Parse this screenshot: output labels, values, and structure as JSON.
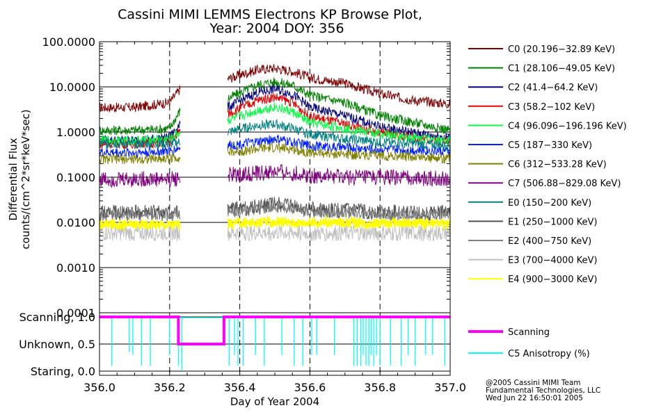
{
  "title_line1": "Cassini MIMI LEMMS Electrons KP Browse Plot,",
  "title_line2": "Year: 2004 DOY: 356",
  "credits": [
    "@2005 Cassini MIMI Team",
    "Fundamental Technologies, LLC",
    "Wed Jun 22 16:50:01 2005"
  ],
  "colors": {
    "C0": "#800000",
    "C1": "#008000",
    "C2": "#000080",
    "C3": "#e00000",
    "C4": "#00ff40",
    "C5": "#0020ff",
    "C6": "#808000",
    "C7": "#800080",
    "E0": "#008080",
    "E1": "#505050",
    "E2": "#808080",
    "E3": "#c0c0c0",
    "E4": "#ffff00",
    "scanning": "#ff00ff",
    "anisotropy": "#00ffff"
  },
  "chart_data": [
    {
      "type": "line",
      "title": "Cassini MIMI LEMMS Electrons KP Browse Plot, Year: 2004 DOY: 356",
      "xlabel": "Day of Year 2004",
      "ylabel": "Differential Flux counts/(cm^2*sr*keV*sec)",
      "yscale": "log",
      "xlim": [
        356.0,
        357.0
      ],
      "ylim": [
        0.0001,
        100.0
      ],
      "ytick_labels": [
        "100.0000",
        "10.0000",
        "1.0000",
        "0.1000",
        "0.0100",
        "0.0010",
        "0.0001"
      ],
      "grid": true,
      "data_gap": [
        356.23,
        356.365
      ],
      "dashed_day_markers": [
        356.2,
        356.4,
        356.6,
        356.8
      ],
      "series": [
        {
          "key": "C0",
          "name": "C0 (20.196−32.89 KeV)",
          "x": [
            356.0,
            356.1,
            356.2,
            356.23,
            356.365,
            356.45,
            356.5,
            356.55,
            356.6,
            356.7,
            356.8,
            356.9,
            357.0
          ],
          "values": [
            3.5,
            3.5,
            4.5,
            9.0,
            15,
            24,
            26,
            22,
            16,
            12,
            7,
            5,
            4.2
          ]
        },
        {
          "key": "C1",
          "name": "C1 (28.106−49.05 KeV)",
          "x": [
            356.0,
            356.1,
            356.2,
            356.23,
            356.365,
            356.45,
            356.5,
            356.55,
            356.6,
            356.7,
            356.8,
            356.9,
            357.0
          ],
          "values": [
            1.1,
            1.1,
            1.2,
            3.0,
            5.5,
            11,
            13,
            11,
            6.5,
            4.5,
            2.3,
            1.6,
            1.1
          ]
        },
        {
          "key": "C2",
          "name": "C2 (41.4−64.2 KeV)",
          "x": [
            356.0,
            356.1,
            356.2,
            356.23,
            356.365,
            356.45,
            356.5,
            356.55,
            356.6,
            356.7,
            356.8,
            356.9,
            357.0
          ],
          "values": [
            0.65,
            0.65,
            0.75,
            1.6,
            3.5,
            7.5,
            9,
            7,
            3.5,
            2.3,
            1.3,
            0.95,
            0.75
          ]
        },
        {
          "key": "C3",
          "name": "C3 (58.2−102 KeV)",
          "x": [
            356.0,
            356.1,
            356.2,
            356.23,
            356.365,
            356.45,
            356.5,
            356.55,
            356.6,
            356.7,
            356.8,
            356.9,
            357.0
          ],
          "values": [
            0.55,
            0.55,
            0.6,
            1.1,
            2.5,
            5,
            6,
            4.5,
            2.2,
            1.5,
            0.95,
            0.75,
            0.6
          ]
        },
        {
          "key": "C4",
          "name": "C4 (96.096−196.196 KeV)",
          "x": [
            356.0,
            356.1,
            356.2,
            356.23,
            356.365,
            356.45,
            356.5,
            356.55,
            356.6,
            356.7,
            356.8,
            356.9,
            357.0
          ],
          "values": [
            0.65,
            0.65,
            0.7,
            1.0,
            1.8,
            3,
            3.6,
            2.8,
            1.6,
            1.2,
            0.9,
            0.75,
            0.65
          ]
        },
        {
          "key": "C5",
          "name": "C5 (187−330 KeV)",
          "x": [
            356.0,
            356.1,
            356.2,
            356.23,
            356.365,
            356.45,
            356.5,
            356.55,
            356.6,
            356.7,
            356.8,
            356.9,
            357.0
          ],
          "values": [
            0.35,
            0.35,
            0.38,
            0.45,
            0.5,
            0.6,
            0.7,
            0.6,
            0.5,
            0.45,
            0.42,
            0.4,
            0.38
          ]
        },
        {
          "key": "C6",
          "name": "C6 (312−533.28 KeV)",
          "x": [
            356.0,
            356.1,
            356.2,
            356.23,
            356.365,
            356.45,
            356.5,
            356.55,
            356.6,
            356.7,
            356.8,
            356.9,
            357.0
          ],
          "values": [
            0.25,
            0.25,
            0.26,
            0.28,
            0.35,
            0.42,
            0.45,
            0.42,
            0.35,
            0.32,
            0.3,
            0.28,
            0.26
          ]
        },
        {
          "key": "C7",
          "name": "C7 (506.88−829.08 KeV)",
          "x": [
            356.0,
            356.1,
            356.2,
            356.23,
            356.365,
            356.45,
            356.5,
            356.55,
            356.6,
            356.7,
            356.8,
            356.9,
            357.0
          ],
          "values": [
            0.09,
            0.09,
            0.09,
            0.095,
            0.11,
            0.12,
            0.13,
            0.12,
            0.11,
            0.1,
            0.1,
            0.095,
            0.09
          ]
        },
        {
          "key": "E0",
          "name": "E0 (150−200 KeV)",
          "x": [
            356.0,
            356.1,
            356.2,
            356.23,
            356.365,
            356.45,
            356.5,
            356.55,
            356.6,
            356.7,
            356.8,
            356.9,
            357.0
          ],
          "values": [
            0.55,
            0.55,
            0.55,
            0.6,
            1.0,
            1.4,
            1.5,
            1.2,
            0.9,
            0.7,
            0.6,
            0.55,
            0.5
          ]
        },
        {
          "key": "E1",
          "name": "E1 (250−1000 KeV)",
          "x": [
            356.0,
            356.1,
            356.2,
            356.23,
            356.365,
            356.45,
            356.5,
            356.55,
            356.6,
            356.7,
            356.8,
            356.9,
            357.0
          ],
          "values": [
            0.016,
            0.016,
            0.016,
            0.016,
            0.019,
            0.022,
            0.025,
            0.022,
            0.019,
            0.018,
            0.017,
            0.016,
            0.016
          ]
        },
        {
          "key": "E2",
          "name": "E2 (400−750 KeV)",
          "x": [
            356.0,
            356.1,
            356.2,
            356.23,
            356.365,
            356.45,
            356.5,
            356.55,
            356.6,
            356.7,
            356.8,
            356.9,
            357.0
          ],
          "values": [
            0.015,
            0.015,
            0.015,
            0.015,
            0.017,
            0.02,
            0.022,
            0.02,
            0.017,
            0.016,
            0.015,
            0.015,
            0.015
          ]
        },
        {
          "key": "E3",
          "name": "E3 (700−4000 KeV)",
          "x": [
            356.0,
            356.1,
            356.2,
            356.23,
            356.365,
            356.45,
            356.5,
            356.55,
            356.6,
            356.7,
            356.8,
            356.9,
            357.0
          ],
          "values": [
            0.0058,
            0.0058,
            0.0058,
            0.0058,
            0.0058,
            0.006,
            0.006,
            0.006,
            0.0058,
            0.0058,
            0.0058,
            0.0058,
            0.0058
          ]
        },
        {
          "key": "E4",
          "name": "E4 (900−3000 KeV)",
          "x": [
            356.0,
            356.1,
            356.2,
            356.23,
            356.365,
            356.45,
            356.5,
            356.55,
            356.6,
            356.7,
            356.8,
            356.9,
            357.0
          ],
          "values": [
            0.009,
            0.009,
            0.009,
            0.009,
            0.0095,
            0.01,
            0.01,
            0.01,
            0.01,
            0.01,
            0.0095,
            0.0095,
            0.0095
          ]
        }
      ]
    },
    {
      "type": "line",
      "xlabel": "Day of Year 2004",
      "xlim": [
        356.0,
        357.0
      ],
      "ylim": [
        0.0,
        1.0
      ],
      "xtick_labels": [
        "356.0",
        "356.2",
        "356.4",
        "356.6",
        "356.8",
        "357.0"
      ],
      "ytick_labels": [
        "Scanning, 1.0",
        "Unknown, 0.5",
        "Staring, 0.0"
      ],
      "series": [
        {
          "key": "scanning",
          "name": "Scanning",
          "x": [
            356.0,
            356.225,
            356.225,
            356.355,
            356.355,
            357.0
          ],
          "values": [
            1.0,
            1.0,
            0.5,
            0.5,
            1.0,
            1.0
          ]
        },
        {
          "key": "anisotropy",
          "name": "C5 Anisotropy (%)",
          "dropouts": [
            356.035,
            356.085,
            356.095,
            356.12,
            356.145,
            356.2,
            356.225,
            356.235,
            356.37,
            356.385,
            356.395,
            356.41,
            356.445,
            356.47,
            356.52,
            356.555,
            356.58,
            356.605,
            356.62,
            356.67,
            356.725,
            356.735,
            356.745,
            356.752,
            356.76,
            356.768,
            356.775,
            356.782,
            356.79,
            356.8,
            356.83,
            356.86,
            356.88,
            356.9,
            356.93,
            356.95,
            356.985
          ],
          "dropout_levels": [
            0.1,
            0.35,
            0.3,
            0.1,
            0.1,
            0.3,
            0.1,
            0.0,
            0.1,
            0.3,
            0.1,
            0.1,
            0.3,
            0.1,
            0.3,
            0.1,
            0.1,
            0.3,
            0.3,
            0.3,
            0.1,
            0.1,
            0.1,
            0.3,
            0.1,
            0.1,
            0.3,
            0.1,
            0.3,
            0.1,
            0.1,
            0.1,
            0.3,
            0.1,
            0.3,
            0.3,
            0.1
          ]
        }
      ]
    }
  ]
}
